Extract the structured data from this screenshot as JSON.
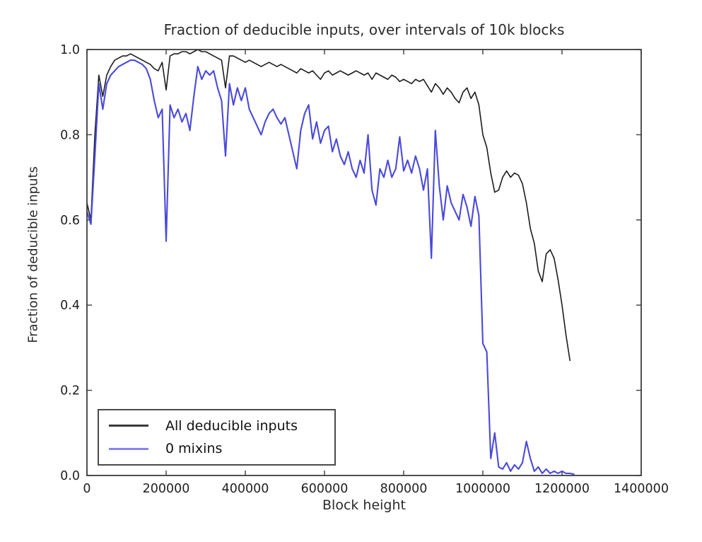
{
  "figure": {
    "title": "Fraction of deducible inputs, over intervals of 10k blocks",
    "xlabel": "Block height",
    "ylabel": "Fraction of deducible inputs"
  },
  "legend": {
    "items": [
      {
        "label": "All deducible inputs",
        "swatch_color": "#3a3a3a"
      },
      {
        "label": "0 mixins",
        "swatch_color": "#8686ec"
      }
    ]
  },
  "chart_data": {
    "type": "line",
    "title": "Fraction of deducible inputs, over intervals of 10k blocks",
    "xlabel": "Block height",
    "ylabel": "Fraction of deducible inputs",
    "xlim": [
      0,
      1400000
    ],
    "ylim": [
      0.0,
      1.0
    ],
    "grid": false,
    "legend_position": "lower left",
    "frame_color": "#3c3c3c",
    "tick_color": "#3c3c3c",
    "tick_label_color": "#1f1f1f",
    "x_ticks": [
      0,
      200000,
      400000,
      600000,
      800000,
      1000000,
      1200000,
      1400000
    ],
    "x_tick_labels": [
      "0",
      "200000",
      "400000",
      "600000",
      "800000",
      "1000000",
      "1200000",
      "1400000"
    ],
    "y_ticks": [
      0.0,
      0.2,
      0.4,
      0.6,
      0.8,
      1.0
    ],
    "y_tick_labels": [
      "0.0",
      "0.2",
      "0.4",
      "0.6",
      "0.8",
      "1.0"
    ],
    "x_start": 0,
    "x_step": 10000,
    "series": [
      {
        "id": "all-deducible-inputs",
        "name": "All deducible inputs",
        "color": "#1c1c1c",
        "width": 1.6,
        "values": [
          0.64,
          0.6,
          0.8,
          0.94,
          0.89,
          0.94,
          0.96,
          0.975,
          0.98,
          0.985,
          0.985,
          0.99,
          0.985,
          0.98,
          0.975,
          0.97,
          0.965,
          0.955,
          0.95,
          0.97,
          0.905,
          0.985,
          0.99,
          0.99,
          0.995,
          0.995,
          0.99,
          0.995,
          1.0,
          0.995,
          0.995,
          0.99,
          0.985,
          0.98,
          0.975,
          0.91,
          0.985,
          0.985,
          0.98,
          0.975,
          0.97,
          0.975,
          0.97,
          0.965,
          0.96,
          0.965,
          0.97,
          0.965,
          0.96,
          0.965,
          0.96,
          0.955,
          0.95,
          0.945,
          0.955,
          0.95,
          0.945,
          0.95,
          0.94,
          0.93,
          0.945,
          0.95,
          0.94,
          0.945,
          0.95,
          0.945,
          0.94,
          0.945,
          0.95,
          0.945,
          0.94,
          0.945,
          0.93,
          0.945,
          0.94,
          0.935,
          0.93,
          0.94,
          0.935,
          0.925,
          0.93,
          0.925,
          0.92,
          0.93,
          0.925,
          0.93,
          0.915,
          0.9,
          0.92,
          0.91,
          0.895,
          0.91,
          0.9,
          0.885,
          0.875,
          0.9,
          0.91,
          0.885,
          0.9,
          0.87,
          0.8,
          0.77,
          0.71,
          0.665,
          0.67,
          0.7,
          0.715,
          0.7,
          0.71,
          0.705,
          0.685,
          0.64,
          0.58,
          0.545,
          0.48,
          0.455,
          0.52,
          0.53,
          0.51,
          0.46,
          0.4,
          0.33,
          0.27
        ]
      },
      {
        "id": "0-mixins",
        "name": "0 mixins",
        "color": "#4a4ada",
        "width": 2.1,
        "values": [
          0.62,
          0.59,
          0.75,
          0.92,
          0.86,
          0.92,
          0.94,
          0.95,
          0.96,
          0.965,
          0.97,
          0.975,
          0.975,
          0.97,
          0.965,
          0.955,
          0.93,
          0.88,
          0.84,
          0.86,
          0.55,
          0.87,
          0.84,
          0.86,
          0.83,
          0.85,
          0.81,
          0.89,
          0.96,
          0.93,
          0.95,
          0.94,
          0.95,
          0.91,
          0.88,
          0.75,
          0.92,
          0.87,
          0.91,
          0.88,
          0.91,
          0.86,
          0.84,
          0.82,
          0.8,
          0.83,
          0.85,
          0.86,
          0.84,
          0.825,
          0.84,
          0.8,
          0.76,
          0.72,
          0.81,
          0.85,
          0.87,
          0.79,
          0.83,
          0.78,
          0.81,
          0.82,
          0.76,
          0.79,
          0.75,
          0.73,
          0.76,
          0.72,
          0.7,
          0.74,
          0.71,
          0.8,
          0.67,
          0.635,
          0.72,
          0.7,
          0.74,
          0.7,
          0.72,
          0.795,
          0.715,
          0.74,
          0.71,
          0.75,
          0.72,
          0.67,
          0.72,
          0.51,
          0.81,
          0.68,
          0.6,
          0.68,
          0.64,
          0.62,
          0.6,
          0.66,
          0.63,
          0.585,
          0.655,
          0.61,
          0.31,
          0.29,
          0.04,
          0.1,
          0.02,
          0.015,
          0.03,
          0.01,
          0.025,
          0.015,
          0.03,
          0.08,
          0.04,
          0.01,
          0.02,
          0.005,
          0.015,
          0.005,
          0.01,
          0.005,
          0.01,
          0.005,
          0.005,
          0.003
        ]
      }
    ]
  }
}
